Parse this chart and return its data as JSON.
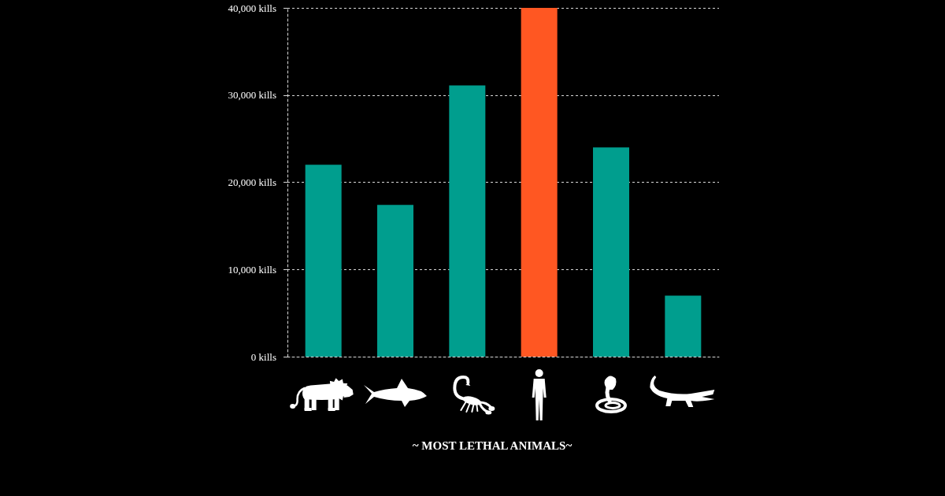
{
  "chart_data": {
    "type": "bar",
    "title": "~ MOST LETHAL ANIMALS~",
    "categories": [
      null,
      null,
      null,
      null,
      null,
      null
    ],
    "values": [
      22000,
      17400,
      31100,
      40000,
      24000,
      7000
    ],
    "colors": [
      "#009e8e",
      "#009e8e",
      "#009e8e",
      "#ff5722",
      "#009e8e",
      "#009e8e"
    ],
    "ylim": [
      0,
      40000
    ],
    "yticks": [
      {
        "value": 0,
        "label": "0 kills"
      },
      {
        "value": 10000,
        "label": "10,000 kills"
      },
      {
        "value": 20000,
        "label": "20,000 kills"
      },
      {
        "value": 30000,
        "label": "30,000 kills"
      },
      {
        "value": 40000,
        "label": "40,000 kills"
      }
    ],
    "grid": "y",
    "tick_labels": "y"
  }
}
